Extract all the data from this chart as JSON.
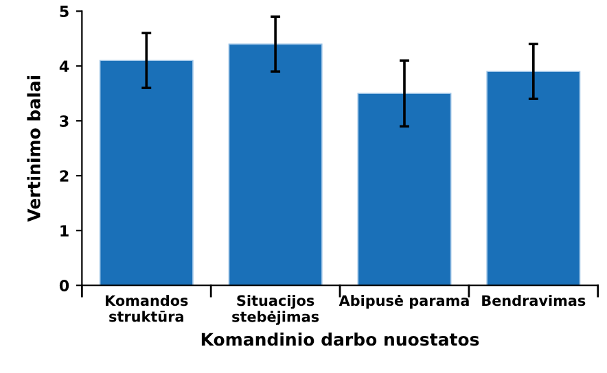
{
  "chart_data": {
    "type": "bar",
    "xlabel": "Komandinio darbo nuostatos",
    "ylabel": "Vertinimo balai",
    "categories": [
      "Komandos\nstruktūra",
      "Situacijos\nstebėjimas",
      "Abipusė parama",
      "Bendravimas"
    ],
    "values": [
      4.1,
      4.4,
      3.5,
      3.9
    ],
    "errors": [
      0.5,
      0.5,
      0.6,
      0.5
    ],
    "color": "#1a70b8",
    "ylim": [
      0,
      5
    ],
    "yticks": [
      0,
      1,
      2,
      3,
      4,
      5
    ],
    "grid": false,
    "legend": false
  }
}
